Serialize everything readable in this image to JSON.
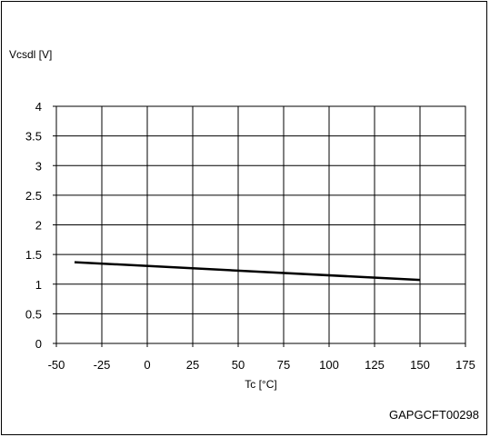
{
  "chart_data": {
    "type": "line",
    "ylabel": "Vcsdl [V]",
    "xlabel": "Tc [°C]",
    "xlim": [
      -50,
      175
    ],
    "ylim": [
      0,
      4
    ],
    "x_ticks": [
      "-50",
      "-25",
      "0",
      "25",
      "50",
      "75",
      "100",
      "125",
      "150",
      "175"
    ],
    "y_ticks": [
      "0",
      "0.5",
      "1",
      "1.5",
      "2",
      "2.5",
      "3",
      "3.5",
      "4"
    ],
    "grid": true,
    "series": [
      {
        "x": [
          -40,
          150
        ],
        "y": [
          1.37,
          1.07
        ]
      }
    ],
    "line_color": "#000000"
  },
  "figure_code": "GAPGCFT00298"
}
